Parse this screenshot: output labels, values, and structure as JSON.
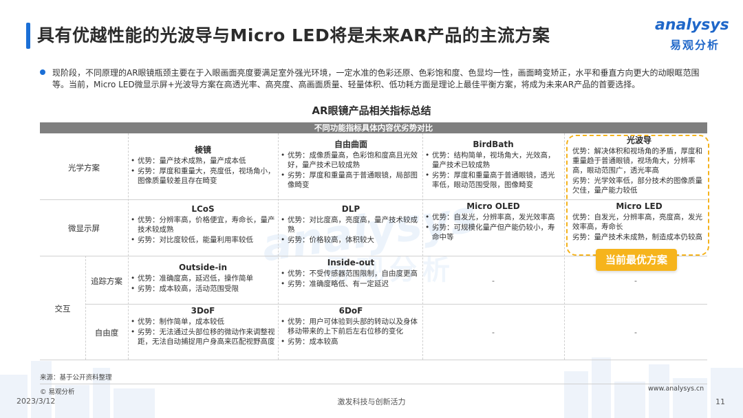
{
  "header": {
    "title": "具有优越性能的光波导与Micro  LED将是未来AR产品的主流方案",
    "logo_en": "analysys",
    "logo_cn": "易观分析"
  },
  "intro": "现阶段，不同原理的AR眼镜瓶颈主要在于入眼画面亮度要满足室外强光环境，一定水准的色彩还原、色彩饱和度、色显均一性，画面畸变矫正，水平和垂直方向更大的动眼眶范围等。当前，Micro LED微显示屏+光波导方案在高透光率、高亮度、高画面质量、轻量体积、低功耗方面是理论上最佳平衡方案，将成为未来AR产品的首要选择。",
  "table": {
    "title": "AR眼镜产品相关指标总结",
    "header": "不同功能指标具体内容优劣势对比",
    "rows": {
      "optics": {
        "label": "光学方案",
        "c1": {
          "h": "棱镜",
          "l1": "优势：量产技术成熟，量产成本低",
          "l2": "劣势：厚度和重量大，亮度低，视场角小，图像质量较差且存在畸变"
        },
        "c2": {
          "h": "自由曲面",
          "l1": "优势：成像质量高，色彩饱和度高且光效好，量产技术已较成熟",
          "l2": "劣势：厚度和重量高于普通眼镜，局部图像畸变"
        },
        "c3": {
          "h": "BirdBath",
          "l1": "优势：结构简单，视场角大，光效高，量产技术已较成熟",
          "l2": "劣势：厚度和重量高于普通眼镜，透光率低，眼动范围受限，图像畸变"
        },
        "c4": {
          "h": "光波导",
          "l1": "优势：解决体积和视场角的矛盾，厚度和重量趋于普通眼镜，视场角大，分辨率高，眼动范围广，透光率高",
          "l2": "劣势：光学效率低，部分技术的图像质量欠佳，量产能力较低"
        }
      },
      "display": {
        "label": "微显示屏",
        "c1": {
          "h": "LCoS",
          "l1": "优势：分辨率高，价格便宜，寿命长，量产技术较成熟",
          "l2": "劣势：对比度较低，能量利用率较低"
        },
        "c2": {
          "h": "DLP",
          "l1": "优势：对比度高，亮度高，量产技术较成熟",
          "l2": "劣势：价格较高，体积较大"
        },
        "c3": {
          "h": "Micro OLED",
          "l1": "优势：自发光，分辨率高，发光效率高",
          "l2": "劣势：可规模化量产但产能仍较小，寿命中等"
        },
        "c4": {
          "h": "Micro LED",
          "l1": "优势：自发光，分辨率高，亮度高，发光效率高，寿命长",
          "l2": "劣势：量产技术未成熟，制造成本仍较高"
        }
      },
      "interaction": {
        "label": "交互",
        "tracking": {
          "label": "追踪方案",
          "c1": {
            "h": "Outside-in",
            "l1": "优势：准确度高，延迟低，操作简单",
            "l2": "劣势：成本较高，活动范围受限"
          },
          "c2": {
            "h": "Inside-out",
            "l1": "优势：不受传感器范围限制，自由度更高",
            "l2": "劣势：准确度略低、有一定延迟"
          },
          "c3": "-",
          "c4": "-"
        },
        "dof": {
          "label": "自由度",
          "c1": {
            "h": "3DoF",
            "l1": "优势：制作简单，成本较低",
            "l2": "劣势：无法通过头部位移的微动作来调整视距，无法自动捕捉用户身高来匹配视野高度"
          },
          "c2": {
            "h": "6DoF",
            "l1": "优势：用户可体验到头部的转动以及身体移动带来的上下前后左右位移的变化",
            "l2": "劣势：成本较高"
          },
          "c3": "-",
          "c4": "-"
        }
      }
    },
    "badge": "当前最优方案"
  },
  "footer": {
    "source": "来源：基于公开资料整理",
    "copyright": "© 易观分析",
    "url": "www.analysys.cn",
    "date": "2023/3/12",
    "slogan": "激发科技与创新活力",
    "page": "11"
  },
  "colors": {
    "accent": "#1b6fd6",
    "badge": "#f6b41c",
    "table_header": "#7f7f7f"
  }
}
